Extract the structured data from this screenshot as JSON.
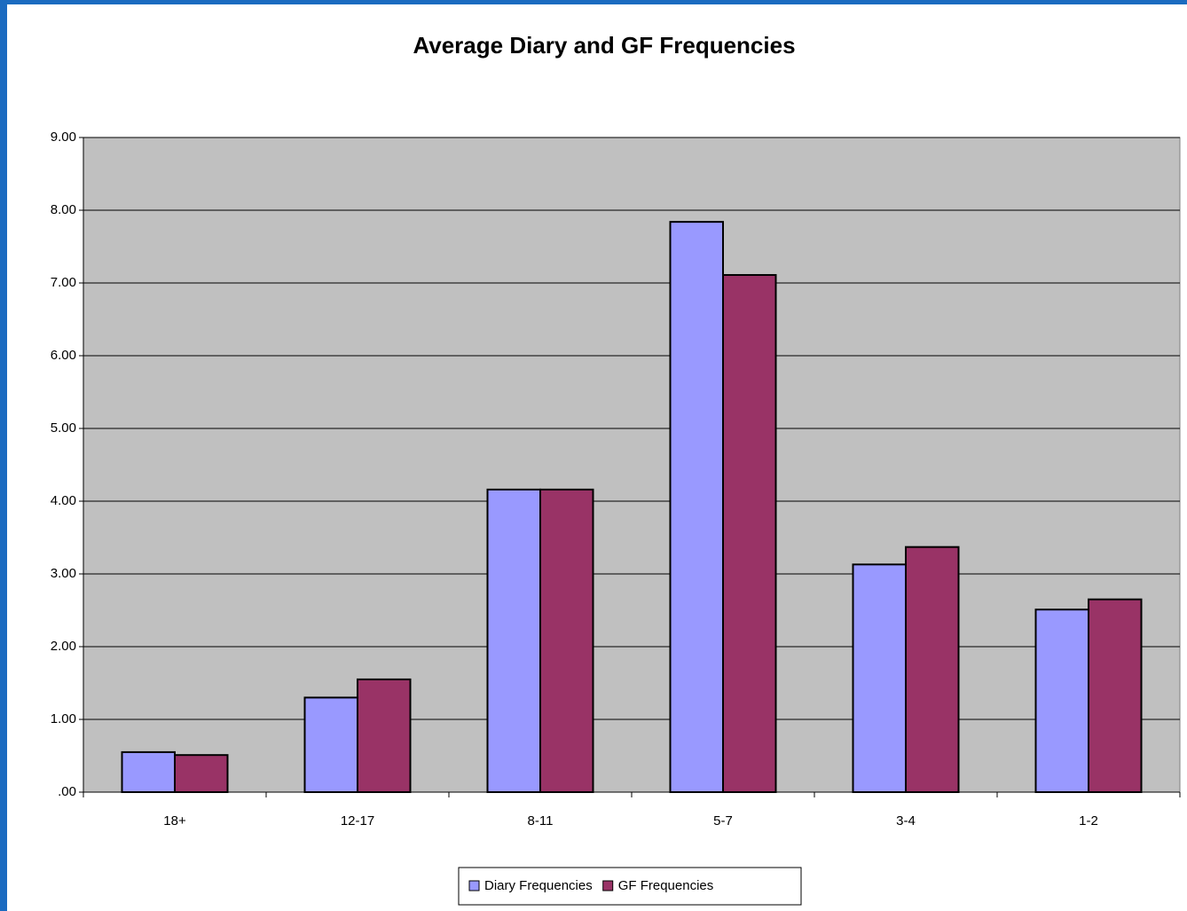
{
  "chart_data": {
    "type": "bar",
    "title": "Average Diary and GF Frequencies",
    "categories": [
      "18+",
      "12-17",
      "8-11",
      "5-7",
      "3-4",
      "1-2"
    ],
    "series": [
      {
        "name": "Diary Frequencies",
        "color": "#9999ff",
        "values": [
          0.55,
          1.3,
          4.16,
          7.84,
          3.13,
          2.51
        ]
      },
      {
        "name": "GF Frequencies",
        "color": "#993366",
        "values": [
          0.51,
          1.55,
          4.16,
          7.11,
          3.37,
          2.65
        ]
      }
    ],
    "ylim": [
      0,
      9
    ],
    "yticks": [
      {
        "value": 0,
        "label": ".00"
      },
      {
        "value": 1,
        "label": "1.00"
      },
      {
        "value": 2,
        "label": "2.00"
      },
      {
        "value": 3,
        "label": "3.00"
      },
      {
        "value": 4,
        "label": "4.00"
      },
      {
        "value": 5,
        "label": "5.00"
      },
      {
        "value": 6,
        "label": "6.00"
      },
      {
        "value": 7,
        "label": "7.00"
      },
      {
        "value": 8,
        "label": "8.00"
      },
      {
        "value": 9,
        "label": "9.00"
      }
    ],
    "grid": true,
    "legend": "bottom",
    "plot_background": "#c0c0c0"
  }
}
